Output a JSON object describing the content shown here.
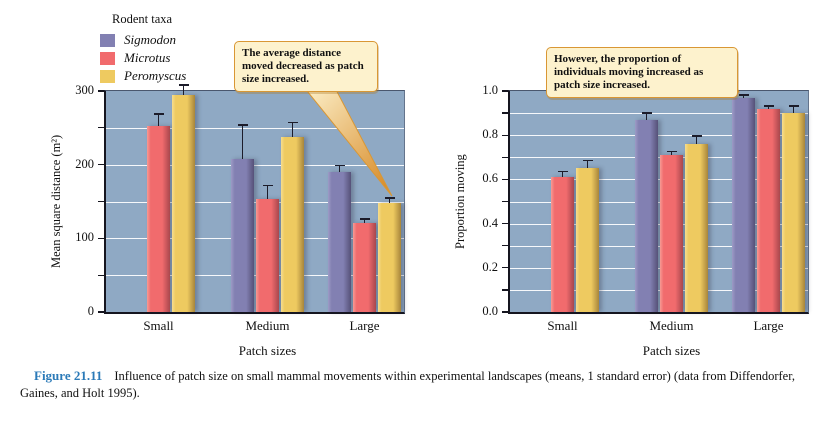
{
  "legend": {
    "title": "Rodent taxa",
    "items": [
      {
        "label": "Sigmodon"
      },
      {
        "label": "Microtus"
      },
      {
        "label": "Peromyscus"
      }
    ]
  },
  "callouts": {
    "left": "The average distance moved decreased as patch size increased.",
    "right": "However, the proportion of individuals moving increased as patch size increased."
  },
  "figure": {
    "caption_label": "Figure 21.11",
    "caption_text": "Influence of patch size on small mammal movements within experimental landscapes (means, 1 standard error) (data from Diffendorfer, Gaines, and Holt 1995)."
  },
  "colors": {
    "plot_bg": "#8fa9c4",
    "gridline": "#ffffff",
    "axis": "#15151f",
    "error_bar": "#1c1c2a",
    "callout_bg": "#fdf2cd",
    "callout_border": "#d99734",
    "caption_label": "#2b7ab8",
    "series": {
      "Sigmodon": {
        "face": "#8280b2",
        "dark": "#565178",
        "light": "#9d9bc6"
      },
      "Microtus": {
        "face": "#f16b6d",
        "dark": "#a8474d",
        "light": "#f79a94"
      },
      "Peromyscus": {
        "face": "#eeca60",
        "dark": "#a7853b",
        "light": "#f6dd8e"
      }
    }
  },
  "chart_data": [
    {
      "type": "bar",
      "title": "",
      "xlabel": "Patch sizes",
      "ylabel": "Mean square distance (m²)",
      "categories": [
        "Small",
        "Medium",
        "Large"
      ],
      "series": [
        {
          "name": "Sigmodon",
          "values": [
            null,
            208,
            190
          ],
          "errors": [
            null,
            47,
            10
          ]
        },
        {
          "name": "Microtus",
          "values": [
            252,
            154,
            121
          ],
          "errors": [
            18,
            19,
            6
          ]
        },
        {
          "name": "Peromyscus",
          "values": [
            295,
            238,
            148
          ],
          "errors": [
            14,
            20,
            8
          ]
        }
      ],
      "ylim": [
        0,
        300
      ],
      "yticks": [
        {
          "v": 0,
          "label": "0"
        },
        {
          "v": 100,
          "label": "100"
        },
        {
          "v": 200,
          "label": "200"
        },
        {
          "v": 300,
          "label": "300"
        }
      ],
      "grid_step": 50,
      "grid": true,
      "legend_position": "outside-top-left"
    },
    {
      "type": "bar",
      "title": "",
      "xlabel": "Patch sizes",
      "ylabel": "Proportion moving",
      "categories": [
        "Small",
        "Medium",
        "Large"
      ],
      "series": [
        {
          "name": "Sigmodon",
          "values": [
            null,
            0.87,
            0.97
          ],
          "errors": [
            null,
            0.035,
            0.015
          ]
        },
        {
          "name": "Microtus",
          "values": [
            0.61,
            0.71,
            0.92
          ],
          "errors": [
            0.03,
            0.02,
            0.015
          ]
        },
        {
          "name": "Peromyscus",
          "values": [
            0.65,
            0.76,
            0.9
          ],
          "errors": [
            0.04,
            0.04,
            0.035
          ]
        }
      ],
      "ylim": [
        0,
        1.0
      ],
      "yticks": [
        {
          "v": 0,
          "label": "0.0"
        },
        {
          "v": 0.2,
          "label": "0.2"
        },
        {
          "v": 0.4,
          "label": "0.4"
        },
        {
          "v": 0.6,
          "label": "0.6"
        },
        {
          "v": 0.8,
          "label": "0.8"
        },
        {
          "v": 1.0,
          "label": "1.0"
        }
      ],
      "grid_step": 0.1,
      "grid": true
    }
  ]
}
